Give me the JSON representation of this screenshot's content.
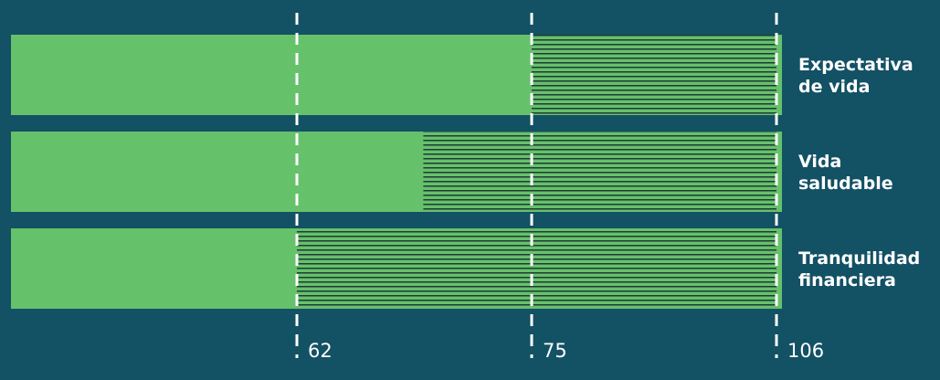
{
  "chart_data": {
    "type": "bar",
    "orientation": "horizontal",
    "categories": [
      [
        "Expectativa",
        "de vida"
      ],
      [
        "Vida",
        "saludable"
      ],
      [
        "Tranquilidad",
        "financiera"
      ]
    ],
    "values": [
      75,
      69,
      62
    ],
    "hatched_until": 106,
    "reference_lines": [
      62,
      75,
      106
    ],
    "tick_labels": [
      "62",
      "75",
      "106"
    ],
    "title": "",
    "xlabel": "",
    "ylabel": "",
    "legend": "none",
    "grid": false,
    "colors": {
      "background": "#135164",
      "bar": "#66c16b",
      "hatch": "#1f3b35",
      "reference_line": "#ffffff",
      "text": "#ffffff"
    }
  }
}
